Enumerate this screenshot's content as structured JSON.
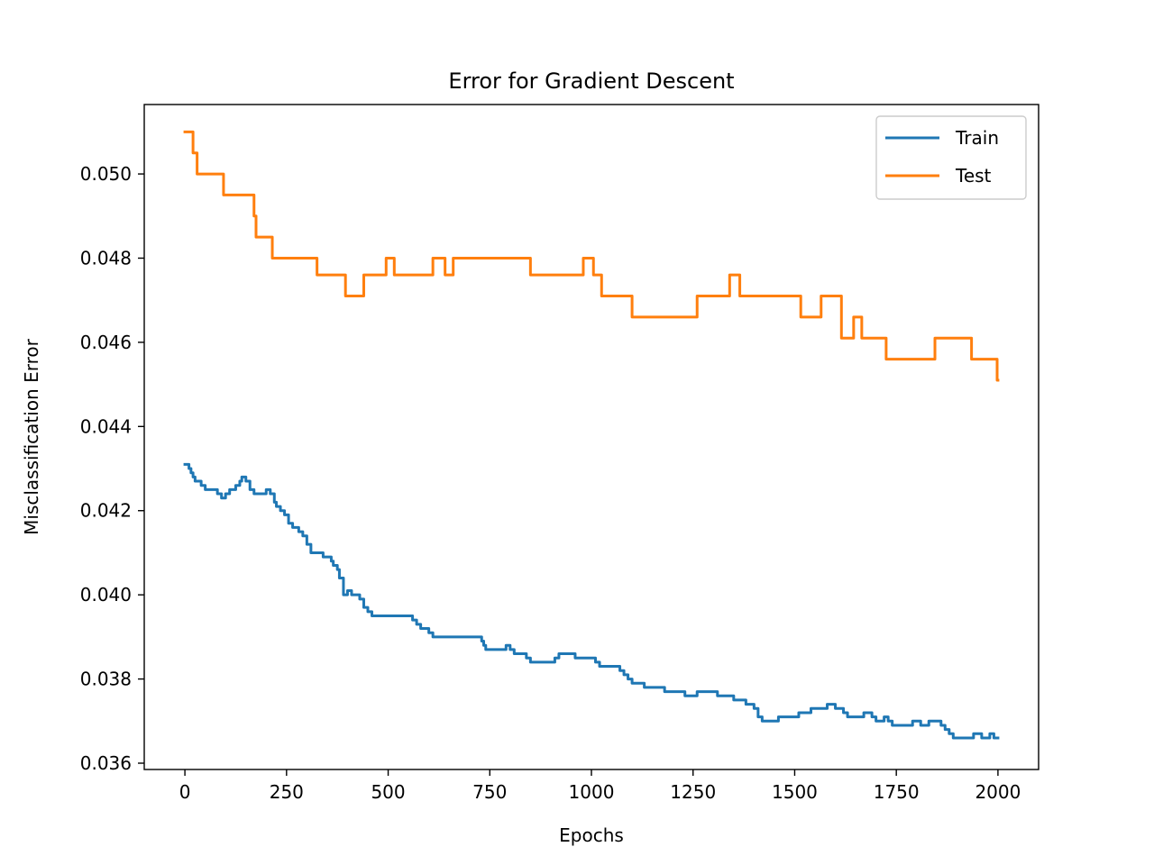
{
  "chart_data": {
    "type": "line",
    "title": "Error for Gradient Descent",
    "xlabel": "Epochs",
    "ylabel": "Misclassification Error",
    "xlim": [
      -100,
      2100
    ],
    "ylim": [
      0.03585,
      0.05165
    ],
    "xticks": [
      0,
      250,
      500,
      750,
      1000,
      1250,
      1500,
      1750,
      2000
    ],
    "xtick_labels": [
      "0",
      "250",
      "500",
      "750",
      "1000",
      "1250",
      "1500",
      "1750",
      "2000"
    ],
    "yticks": [
      0.036,
      0.038,
      0.04,
      0.042,
      0.044,
      0.046,
      0.048,
      0.05
    ],
    "ytick_labels": [
      "0.036",
      "0.038",
      "0.040",
      "0.042",
      "0.044",
      "0.046",
      "0.048",
      "0.050"
    ],
    "grid": false,
    "legend": {
      "position": "top-right"
    },
    "series": [
      {
        "name": "Train",
        "color": "#1f77b4",
        "step": true,
        "points": [
          [
            0,
            0.0431
          ],
          [
            10,
            0.043
          ],
          [
            15,
            0.0429
          ],
          [
            20,
            0.0428
          ],
          [
            25,
            0.0427
          ],
          [
            35,
            0.0427
          ],
          [
            40,
            0.0426
          ],
          [
            50,
            0.0425
          ],
          [
            70,
            0.0425
          ],
          [
            80,
            0.0424
          ],
          [
            90,
            0.0423
          ],
          [
            100,
            0.0424
          ],
          [
            110,
            0.0425
          ],
          [
            125,
            0.0426
          ],
          [
            135,
            0.0427
          ],
          [
            140,
            0.0428
          ],
          [
            150,
            0.0427
          ],
          [
            160,
            0.0425
          ],
          [
            170,
            0.0424
          ],
          [
            195,
            0.0424
          ],
          [
            200,
            0.0425
          ],
          [
            210,
            0.0424
          ],
          [
            220,
            0.0422
          ],
          [
            225,
            0.0421
          ],
          [
            235,
            0.042
          ],
          [
            245,
            0.0419
          ],
          [
            255,
            0.0417
          ],
          [
            265,
            0.0416
          ],
          [
            280,
            0.0415
          ],
          [
            290,
            0.0414
          ],
          [
            300,
            0.0412
          ],
          [
            310,
            0.041
          ],
          [
            330,
            0.041
          ],
          [
            340,
            0.0409
          ],
          [
            360,
            0.0408
          ],
          [
            365,
            0.0407
          ],
          [
            375,
            0.0406
          ],
          [
            380,
            0.0404
          ],
          [
            390,
            0.04
          ],
          [
            400,
            0.0401
          ],
          [
            410,
            0.04
          ],
          [
            420,
            0.04
          ],
          [
            430,
            0.0399
          ],
          [
            440,
            0.0397
          ],
          [
            450,
            0.0396
          ],
          [
            460,
            0.0395
          ],
          [
            550,
            0.0395
          ],
          [
            560,
            0.0394
          ],
          [
            570,
            0.0393
          ],
          [
            580,
            0.0392
          ],
          [
            600,
            0.0391
          ],
          [
            610,
            0.039
          ],
          [
            650,
            0.039
          ],
          [
            720,
            0.039
          ],
          [
            730,
            0.0389
          ],
          [
            735,
            0.0388
          ],
          [
            740,
            0.0387
          ],
          [
            780,
            0.0387
          ],
          [
            790,
            0.0388
          ],
          [
            800,
            0.0387
          ],
          [
            810,
            0.0386
          ],
          [
            830,
            0.0386
          ],
          [
            840,
            0.0385
          ],
          [
            850,
            0.0384
          ],
          [
            900,
            0.0384
          ],
          [
            910,
            0.0385
          ],
          [
            920,
            0.0386
          ],
          [
            960,
            0.0385
          ],
          [
            1000,
            0.0385
          ],
          [
            1010,
            0.0384
          ],
          [
            1020,
            0.0383
          ],
          [
            1060,
            0.0383
          ],
          [
            1070,
            0.0382
          ],
          [
            1080,
            0.0381
          ],
          [
            1090,
            0.038
          ],
          [
            1100,
            0.0379
          ],
          [
            1120,
            0.0379
          ],
          [
            1130,
            0.0378
          ],
          [
            1170,
            0.0378
          ],
          [
            1180,
            0.0377
          ],
          [
            1220,
            0.0377
          ],
          [
            1230,
            0.0376
          ],
          [
            1260,
            0.0377
          ],
          [
            1300,
            0.0377
          ],
          [
            1310,
            0.0376
          ],
          [
            1340,
            0.0376
          ],
          [
            1350,
            0.0375
          ],
          [
            1380,
            0.0374
          ],
          [
            1400,
            0.0373
          ],
          [
            1410,
            0.0371
          ],
          [
            1420,
            0.037
          ],
          [
            1450,
            0.037
          ],
          [
            1460,
            0.0371
          ],
          [
            1480,
            0.0371
          ],
          [
            1500,
            0.0371
          ],
          [
            1510,
            0.0372
          ],
          [
            1530,
            0.0372
          ],
          [
            1540,
            0.0373
          ],
          [
            1570,
            0.0373
          ],
          [
            1580,
            0.0374
          ],
          [
            1600,
            0.0373
          ],
          [
            1620,
            0.0372
          ],
          [
            1630,
            0.0371
          ],
          [
            1660,
            0.0371
          ],
          [
            1670,
            0.0372
          ],
          [
            1690,
            0.0371
          ],
          [
            1700,
            0.037
          ],
          [
            1720,
            0.0371
          ],
          [
            1730,
            0.037
          ],
          [
            1740,
            0.0369
          ],
          [
            1780,
            0.0369
          ],
          [
            1790,
            0.037
          ],
          [
            1810,
            0.0369
          ],
          [
            1830,
            0.037
          ],
          [
            1850,
            0.037
          ],
          [
            1860,
            0.0369
          ],
          [
            1870,
            0.0368
          ],
          [
            1880,
            0.0367
          ],
          [
            1890,
            0.0366
          ],
          [
            1920,
            0.0366
          ],
          [
            1940,
            0.0367
          ],
          [
            1960,
            0.0366
          ],
          [
            1980,
            0.0367
          ],
          [
            1990,
            0.0366
          ],
          [
            2000,
            0.0366
          ]
        ]
      },
      {
        "name": "Test",
        "color": "#ff7f0e",
        "step": true,
        "points": [
          [
            0,
            0.051
          ],
          [
            20,
            0.0505
          ],
          [
            30,
            0.05
          ],
          [
            95,
            0.0495
          ],
          [
            170,
            0.049
          ],
          [
            175,
            0.0485
          ],
          [
            215,
            0.048
          ],
          [
            325,
            0.0476
          ],
          [
            395,
            0.0471
          ],
          [
            440,
            0.0476
          ],
          [
            495,
            0.048
          ],
          [
            515,
            0.0476
          ],
          [
            610,
            0.048
          ],
          [
            640,
            0.0476
          ],
          [
            660,
            0.048
          ],
          [
            850,
            0.0476
          ],
          [
            980,
            0.048
          ],
          [
            1005,
            0.0476
          ],
          [
            1025,
            0.0471
          ],
          [
            1100,
            0.0466
          ],
          [
            1260,
            0.0471
          ],
          [
            1340,
            0.0476
          ],
          [
            1365,
            0.0471
          ],
          [
            1515,
            0.0466
          ],
          [
            1565,
            0.0471
          ],
          [
            1615,
            0.0461
          ],
          [
            1645,
            0.0466
          ],
          [
            1665,
            0.0461
          ],
          [
            1725,
            0.0456
          ],
          [
            1845,
            0.0461
          ],
          [
            1935,
            0.0456
          ],
          [
            1998,
            0.0451
          ],
          [
            2000,
            0.0451
          ]
        ]
      }
    ]
  }
}
